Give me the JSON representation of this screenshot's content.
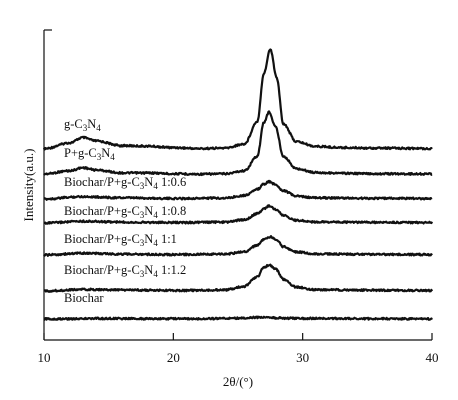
{
  "chart_data": {
    "type": "line",
    "xlabel": "2θ/(°)",
    "ylabel": "Intensity(a.u.)",
    "xlim": [
      10,
      40
    ],
    "x_ticks": [
      "10",
      "20",
      "30",
      "40"
    ],
    "y_ticks_labeled": false,
    "legend": "labels placed above each curve",
    "grid": false,
    "series": [
      {
        "name": "g-C3N4",
        "name_html": "g-C<tspan class=\"sub\" dy=\"3\">3</tspan><tspan dy=\"-3\">N</tspan><tspan class=\"sub\" dy=\"3\">4</tspan>",
        "x": [
          10,
          12,
          13,
          14,
          16,
          18,
          20,
          22,
          24,
          25.5,
          26.5,
          27.0,
          27.5,
          28.0,
          28.5,
          29.5,
          31,
          33,
          36,
          40
        ],
        "y": [
          0.05,
          0.3,
          0.52,
          0.38,
          0.18,
          0.16,
          0.1,
          0.06,
          0.08,
          0.25,
          1.2,
          3.2,
          4.2,
          3.0,
          1.1,
          0.35,
          0.15,
          0.1,
          0.08,
          0.06
        ]
      },
      {
        "name": "P+g-C3N4",
        "name_html": "P+g-C<tspan class=\"sub\" dy=\"3\">3</tspan><tspan dy=\"-3\">N</tspan><tspan class=\"sub\" dy=\"3\">4</tspan>",
        "x": [
          10,
          12,
          13,
          14,
          16,
          18,
          20,
          22,
          24,
          25.5,
          26.5,
          27.0,
          27.4,
          27.9,
          28.5,
          29.5,
          31,
          33,
          36,
          40
        ],
        "y": [
          0.05,
          0.2,
          0.35,
          0.24,
          0.1,
          0.1,
          0.06,
          0.04,
          0.06,
          0.2,
          0.9,
          2.5,
          3.0,
          2.3,
          0.9,
          0.3,
          0.12,
          0.08,
          0.06,
          0.05
        ]
      },
      {
        "name": "Biochar/P+g-C3N4 1:0.6",
        "name_html": "Biochar/P+g-C<tspan class=\"sub\" dy=\"3\">3</tspan><tspan dy=\"-3\">N</tspan><tspan class=\"sub\" dy=\"3\">4</tspan><tspan dy=\"-3\"> 1:0.6</tspan>",
        "x": [
          10,
          13,
          16,
          20,
          24,
          25.5,
          26.5,
          27.0,
          27.4,
          27.9,
          28.5,
          29.5,
          31,
          35,
          40
        ],
        "y": [
          0.0,
          0.1,
          0.05,
          0.02,
          0.04,
          0.15,
          0.4,
          0.62,
          0.72,
          0.6,
          0.35,
          0.12,
          0.05,
          0.03,
          0.02
        ]
      },
      {
        "name": "Biochar/P+g-C3N4 1:0.8",
        "name_html": "Biochar/P+g-C<tspan class=\"sub\" dy=\"3\">3</tspan><tspan dy=\"-3\">N</tspan><tspan class=\"sub\" dy=\"3\">4</tspan><tspan dy=\"-3\"> 1:0.8</tspan>",
        "x": [
          10,
          13,
          16,
          20,
          24,
          25.5,
          26.5,
          27.0,
          27.4,
          27.9,
          28.5,
          29.5,
          31,
          35,
          40
        ],
        "y": [
          0.0,
          0.08,
          0.04,
          0.02,
          0.04,
          0.15,
          0.42,
          0.65,
          0.78,
          0.62,
          0.35,
          0.12,
          0.05,
          0.03,
          0.02
        ]
      },
      {
        "name": "Biochar/P+g-C3N4 1:1",
        "name_html": "Biochar/P+g-C<tspan class=\"sub\" dy=\"3\">3</tspan><tspan dy=\"-3\">N</tspan><tspan class=\"sub\" dy=\"3\">4</tspan><tspan dy=\"-3\"> 1:1</tspan>",
        "x": [
          10,
          13,
          16,
          20,
          24,
          25.5,
          26.5,
          27.0,
          27.5,
          28.0,
          28.5,
          29.5,
          31,
          35,
          40
        ],
        "y": [
          0.0,
          0.08,
          0.04,
          0.02,
          0.04,
          0.15,
          0.45,
          0.7,
          0.82,
          0.66,
          0.38,
          0.14,
          0.05,
          0.03,
          0.02
        ]
      },
      {
        "name": "Biochar/P+g-C3N4 1:1.2",
        "name_html": "Biochar/P+g-C<tspan class=\"sub\" dy=\"3\">3</tspan><tspan dy=\"-3\">N</tspan><tspan class=\"sub\" dy=\"3\">4</tspan><tspan dy=\"-3\"> 1:1.2</tspan>",
        "x": [
          10,
          13,
          16,
          20,
          24,
          25.5,
          26.5,
          27.0,
          27.4,
          27.9,
          28.5,
          29.5,
          31,
          35,
          40
        ],
        "y": [
          0.0,
          0.06,
          0.04,
          0.02,
          0.04,
          0.18,
          0.55,
          0.9,
          1.0,
          0.85,
          0.45,
          0.15,
          0.05,
          0.03,
          0.02
        ]
      },
      {
        "name": "Biochar",
        "name_html": "Biochar",
        "x": [
          10,
          14,
          18,
          22,
          25,
          26.5,
          27.5,
          29,
          32,
          36,
          40
        ],
        "y": [
          0.0,
          0.02,
          0.01,
          0.01,
          0.03,
          0.06,
          0.05,
          0.03,
          0.02,
          0.01,
          0.0
        ]
      }
    ]
  }
}
